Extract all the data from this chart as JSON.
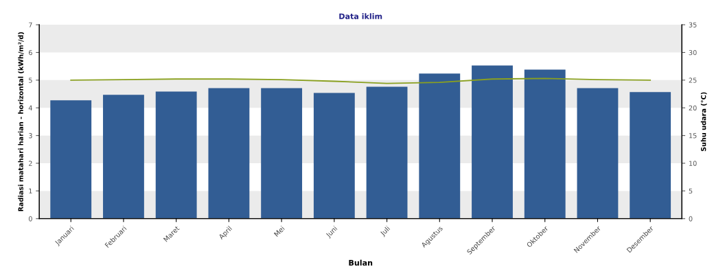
{
  "chart_data": {
    "type": "bar",
    "title": "Data iklim",
    "xlabel": "Bulan",
    "ylabel": "Radiasi matahari harian - horizontal (kWh/m²/d)",
    "y2label": "Suhu udara (°C)",
    "categories": [
      "Januari",
      "Februari",
      "Maret",
      "April",
      "Mei",
      "Juni",
      "Juli",
      "Agustus",
      "September",
      "Oktober",
      "November",
      "Desember"
    ],
    "series": [
      {
        "color": "#325d94",
        "values": [
          4.27,
          4.47,
          4.59,
          4.71,
          4.71,
          4.54,
          4.76,
          5.24,
          5.53,
          5.38,
          4.71,
          4.57
        ]
      },
      {
        "type": "line",
        "axis": "y2",
        "color": "#8aa020",
        "values": [
          25.0,
          25.1,
          25.2,
          25.2,
          25.1,
          24.8,
          24.4,
          24.6,
          25.2,
          25.3,
          25.1,
          25.0
        ]
      }
    ],
    "ylim": [
      0,
      7
    ],
    "yticks": [
      0,
      1,
      2,
      3,
      4,
      5,
      6,
      7
    ],
    "y2lim": [
      0,
      35
    ],
    "y2ticks": [
      0,
      5,
      10,
      15,
      20,
      25,
      30,
      35
    ],
    "bands": [
      {
        "axis": "y",
        "from": 0,
        "to": 1,
        "color": "#ebebeb"
      },
      {
        "axis": "y",
        "from": 2,
        "to": 3,
        "color": "#ebebeb"
      },
      {
        "axis": "y",
        "from": 4,
        "to": 5,
        "color": "#ebebeb"
      },
      {
        "axis": "y",
        "from": 6,
        "to": 7,
        "color": "#ebebeb"
      }
    ],
    "legend": false,
    "marker": "none"
  }
}
